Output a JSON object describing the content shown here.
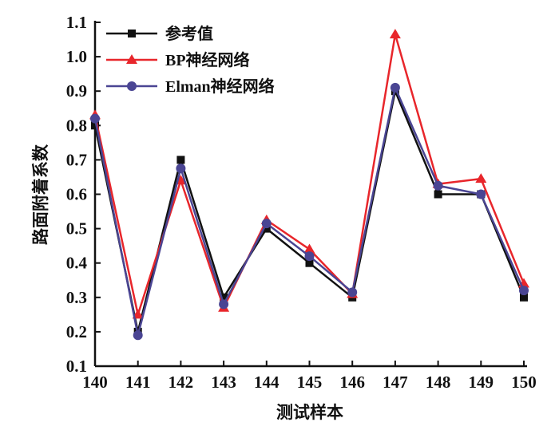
{
  "chart_data": {
    "type": "line",
    "xlabel": "测试样本",
    "ylabel": "路面附着系数",
    "x": [
      140,
      141,
      142,
      143,
      144,
      145,
      146,
      147,
      148,
      149,
      150
    ],
    "xlim": [
      140,
      150
    ],
    "ylim": [
      0.1,
      1.1
    ],
    "yticks": [
      "0.1",
      "0.2",
      "0.3",
      "0.4",
      "0.5",
      "0.6",
      "0.7",
      "0.8",
      "0.9",
      "1.0",
      "1.1"
    ],
    "xticks": [
      "140",
      "141",
      "142",
      "143",
      "144",
      "145",
      "146",
      "147",
      "148",
      "149",
      "150"
    ],
    "grid": false,
    "legend_position": "top-left",
    "series": [
      {
        "name": "参考值",
        "color": "#111111",
        "marker": "square",
        "values": [
          0.8,
          0.2,
          0.7,
          0.3,
          0.5,
          0.4,
          0.3,
          0.9,
          0.6,
          0.6,
          0.3
        ]
      },
      {
        "name": "BP神经网络",
        "color": "#e8262b",
        "marker": "triangle",
        "values": [
          0.83,
          0.25,
          0.64,
          0.27,
          0.525,
          0.44,
          0.31,
          1.065,
          0.63,
          0.645,
          0.34
        ]
      },
      {
        "name": "Elman神经网络",
        "color": "#4a4593",
        "marker": "circle",
        "values": [
          0.82,
          0.19,
          0.675,
          0.28,
          0.515,
          0.42,
          0.315,
          0.91,
          0.625,
          0.6,
          0.32
        ]
      }
    ]
  }
}
